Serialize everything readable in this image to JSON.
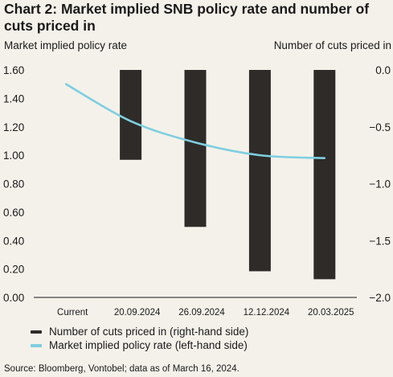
{
  "chart_data": {
    "type": "bar",
    "title": "Chart 2: Market implied SNB policy rate and number of cuts priced in",
    "left_axis_title": "Market implied policy rate",
    "right_axis_title": "Number of cuts priced in",
    "categories": [
      "Current",
      "20.09.2024",
      "26.09.2024",
      "12.12.2024",
      "20.03.2025"
    ],
    "left_axis": {
      "range": [
        0,
        1.6
      ],
      "ticks": [
        "1.60",
        "1.40",
        "1.20",
        "1.00",
        "0.80",
        "0.60",
        "0.40",
        "0.20",
        "0.00"
      ]
    },
    "right_axis": {
      "range": [
        -2.0,
        0.0
      ],
      "ticks": [
        "0.0",
        "−0.5",
        "−1.0",
        "−1.5",
        "−2.0"
      ]
    },
    "series": [
      {
        "name": "Number of cuts priced in (right-hand side)",
        "type": "bar",
        "axis": "right",
        "color": "#2e2b28",
        "values": [
          null,
          -0.79,
          -1.38,
          -1.77,
          -1.84
        ]
      },
      {
        "name": "Market implied policy rate (left-hand side)",
        "type": "line",
        "axis": "left",
        "color": "#7ecfe0",
        "values": [
          1.5,
          1.24,
          1.09,
          1.0,
          0.98
        ]
      }
    ],
    "grid": false,
    "legend_position": "bottom-left",
    "source": "Source: Bloomberg, Vontobel; data as of March 16, 2024."
  }
}
